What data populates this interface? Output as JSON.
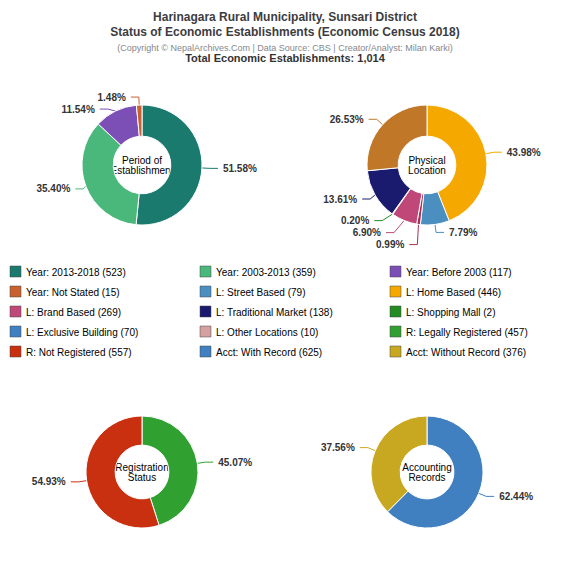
{
  "title": "Harinagara Rural Municipality, Sunsari District\nStatus of Economic Establishments (Economic Census 2018)",
  "subtitle": "(Copyright © NepalArchives.Com | Data Source: CBS | Creator/Analyst: Milan Karki)",
  "annotations": [
    "Total Economic Establishments: 1,014"
  ],
  "legend_entries": [
    {
      "name": "Year: 2013-2018 (523)",
      "color": "#1a7a6e"
    },
    {
      "name": "Year: 2003-2013 (359)",
      "color": "#4ab87a"
    },
    {
      "name": "Year: Before 2003 (117)",
      "color": "#7b4fb5"
    },
    {
      "name": "Year: Not Stated (15)",
      "color": "#c86030"
    },
    {
      "name": "L: Street Based (79)",
      "color": "#4a8fc0"
    },
    {
      "name": "L: Home Based (446)",
      "color": "#f5a800"
    },
    {
      "name": "L: Brand Based (269)",
      "color": "#c04878"
    },
    {
      "name": "L: Traditional Market (138)",
      "color": "#1a1a6e"
    },
    {
      "name": "L: Shopping Mall (2)",
      "color": "#228b22"
    },
    {
      "name": "L: Exclusive Building (70)",
      "color": "#4080c0"
    },
    {
      "name": "L: Other Locations (10)",
      "color": "#d4a0a0"
    },
    {
      "name": "R: Legally Registered (457)",
      "color": "#30a030"
    },
    {
      "name": "R: Not Registered (557)",
      "color": "#c83010"
    },
    {
      "name": "Acct: With Record (625)",
      "color": "#4080c0"
    },
    {
      "name": "Acct: Without Record (376)",
      "color": "#c8a820"
    }
  ],
  "chart_data": [
    {
      "type": "pie",
      "title": "Period of\nEstablishment",
      "values": [
        51.58,
        35.4,
        11.54,
        1.48
      ],
      "value_labels": [
        "51.58%",
        "35.40%",
        "11.54%",
        "1.48%"
      ],
      "colors": [
        "#1a7a6e",
        "#4ab87a",
        "#7b4fb5",
        "#c86030"
      ],
      "data_labels": true
    },
    {
      "type": "pie",
      "title": "Physical\nLocation",
      "values": [
        43.98,
        7.79,
        0.99,
        6.9,
        0.2,
        13.61,
        26.53
      ],
      "value_labels": [
        "43.98%",
        "7.79%",
        "0.99%",
        "6.90%",
        "0.20%",
        "13.61%",
        "26.53%"
      ],
      "colors": [
        "#f5a800",
        "#4a8fc0",
        "#a83050",
        "#c04878",
        "#228b22",
        "#1a1a6e",
        "#c07828"
      ],
      "data_labels": true
    },
    {
      "type": "pie",
      "title": "Registration\nStatus",
      "values": [
        45.07,
        54.93
      ],
      "value_labels": [
        "45.07%",
        "54.93%"
      ],
      "colors": [
        "#30a030",
        "#c83010"
      ],
      "data_labels": true
    },
    {
      "type": "pie",
      "title": "Accounting\nRecords",
      "values": [
        62.44,
        37.56
      ],
      "value_labels": [
        "62.44%",
        "37.56%"
      ],
      "colors": [
        "#4080c0",
        "#c8a820"
      ],
      "data_labels": true
    }
  ]
}
